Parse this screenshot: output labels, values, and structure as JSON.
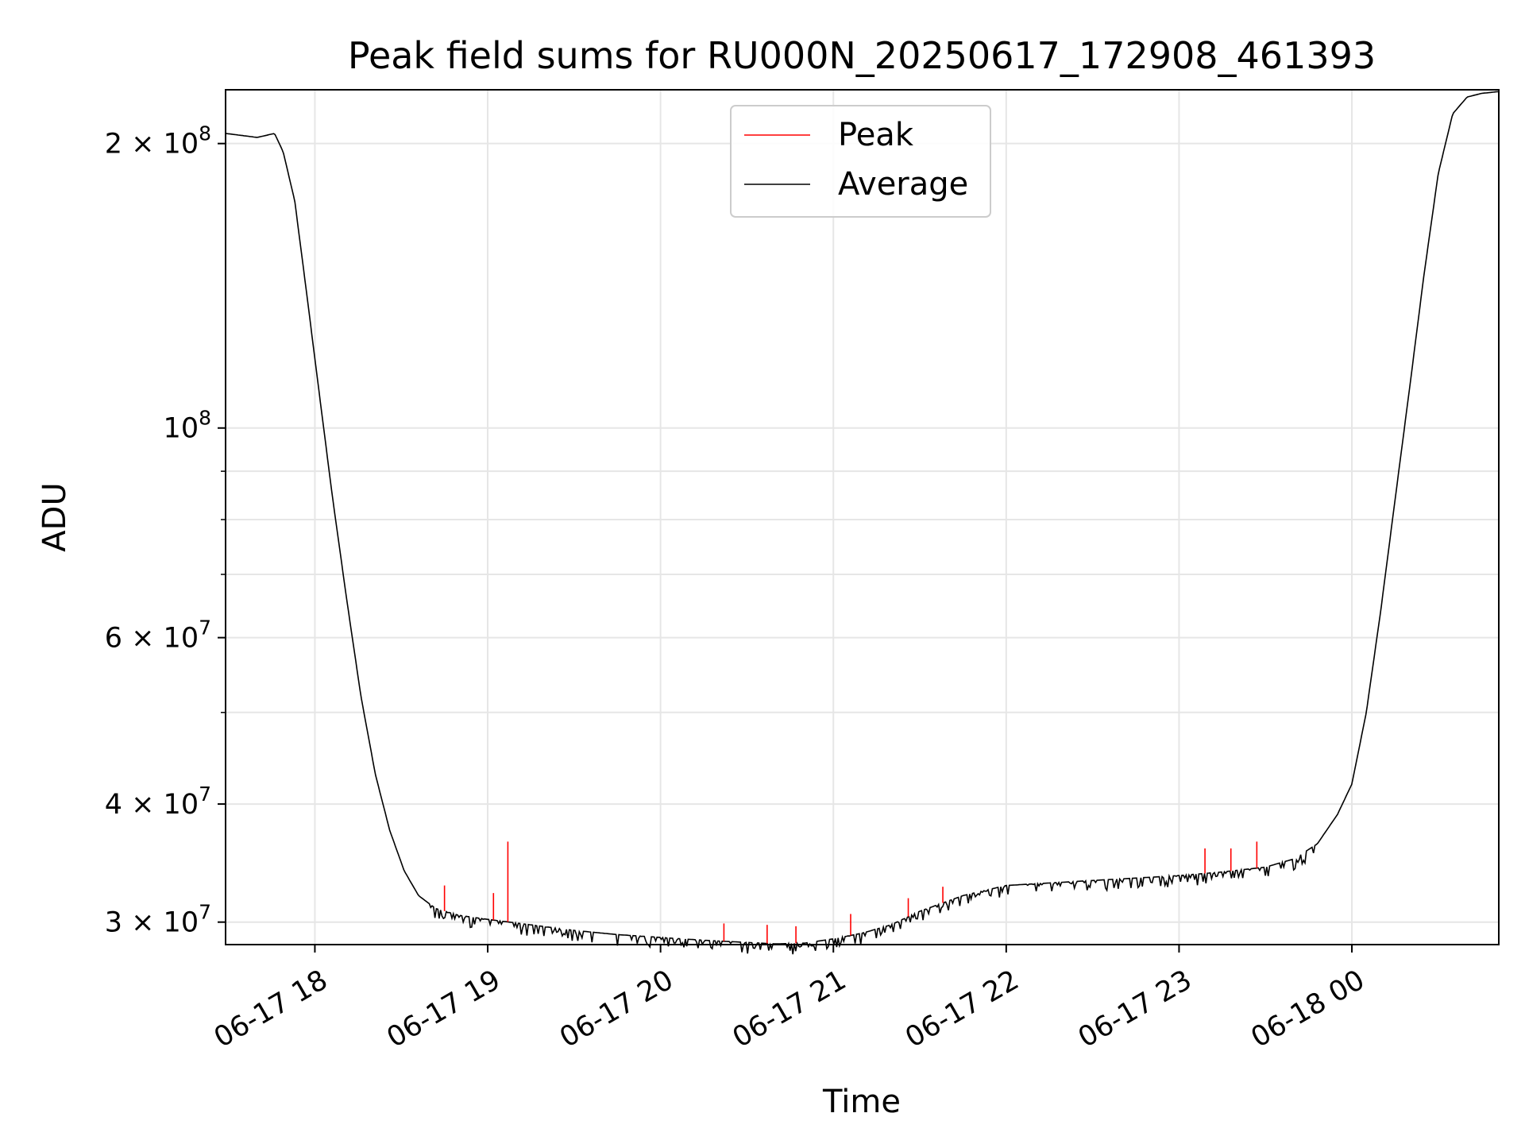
{
  "chart_data": {
    "type": "line",
    "title": "Peak field sums for RU000N_20250617_172908_461393",
    "xlabel": "Time",
    "ylabel": "ADU",
    "y_scale": "log",
    "xlim": [
      "2025-06-17 17:29",
      "2025-06-18 00:51"
    ],
    "ylim": [
      28400000,
      228000000
    ],
    "grid": true,
    "legend_position": "top-center",
    "x_ticks": [
      {
        "t": "2025-06-17 18:00",
        "label": "06-17 18"
      },
      {
        "t": "2025-06-17 19:00",
        "label": "06-17 19"
      },
      {
        "t": "2025-06-17 20:00",
        "label": "06-17 20"
      },
      {
        "t": "2025-06-17 21:00",
        "label": "06-17 21"
      },
      {
        "t": "2025-06-17 22:00",
        "label": "06-17 22"
      },
      {
        "t": "2025-06-17 23:00",
        "label": "06-17 23"
      },
      {
        "t": "2025-06-18 00:00",
        "label": "06-18 00"
      }
    ],
    "y_ticks": [
      {
        "v": 30000000,
        "mant": "3",
        "exp": "7"
      },
      {
        "v": 40000000,
        "mant": "4",
        "exp": "7"
      },
      {
        "v": 60000000,
        "mant": "6",
        "exp": "7"
      },
      {
        "v": 100000000,
        "mant": "",
        "exp": "8"
      },
      {
        "v": 200000000,
        "mant": "2",
        "exp": "8"
      }
    ],
    "y_minor_ticks": [
      50000000,
      70000000,
      80000000,
      90000000
    ],
    "series": [
      {
        "name": "Average",
        "color": "#000000",
        "x": [
          "2025-06-17 17:29",
          "2025-06-17 17:40",
          "2025-06-17 17:46",
          "2025-06-17 17:49",
          "2025-06-17 17:53",
          "2025-06-17 17:57",
          "2025-06-17 18:01",
          "2025-06-17 18:06",
          "2025-06-17 18:11",
          "2025-06-17 18:16",
          "2025-06-17 18:21",
          "2025-06-17 18:26",
          "2025-06-17 18:31",
          "2025-06-17 18:36",
          "2025-06-17 18:42",
          "2025-06-17 18:50",
          "2025-06-17 19:00",
          "2025-06-17 19:15",
          "2025-06-17 19:30",
          "2025-06-17 19:45",
          "2025-06-17 20:00",
          "2025-06-17 20:15",
          "2025-06-17 20:30",
          "2025-06-17 20:40",
          "2025-06-17 20:50",
          "2025-06-17 21:00",
          "2025-06-17 21:10",
          "2025-06-17 21:20",
          "2025-06-17 21:30",
          "2025-06-17 21:45",
          "2025-06-17 22:00",
          "2025-06-17 22:15",
          "2025-06-17 22:30",
          "2025-06-17 22:45",
          "2025-06-17 23:00",
          "2025-06-17 23:15",
          "2025-06-17 23:30",
          "2025-06-17 23:40",
          "2025-06-17 23:48",
          "2025-06-17 23:55",
          "2025-06-18 00:00",
          "2025-06-18 00:05",
          "2025-06-18 00:10",
          "2025-06-18 00:15",
          "2025-06-18 00:20",
          "2025-06-18 00:25",
          "2025-06-18 00:30",
          "2025-06-18 00:35",
          "2025-06-18 00:40",
          "2025-06-18 00:45",
          "2025-06-18 00:51"
        ],
        "values": [
          205000000,
          203000000,
          205000000,
          196000000,
          174000000,
          140000000,
          112000000,
          85000000,
          66000000,
          52000000,
          43000000,
          37500000,
          34000000,
          32000000,
          31000000,
          30500000,
          30200000,
          29800000,
          29400000,
          29100000,
          28900000,
          28700000,
          28550000,
          28450000,
          28500000,
          28800000,
          29200000,
          29800000,
          30800000,
          32000000,
          32800000,
          33000000,
          33200000,
          33400000,
          33600000,
          33900000,
          34300000,
          35000000,
          36300000,
          39000000,
          42000000,
          50000000,
          64000000,
          84000000,
          110000000,
          145000000,
          186000000,
          215000000,
          224000000,
          226000000,
          227000000
        ]
      },
      {
        "name": "Peak",
        "color": "#ff0000",
        "x": [
          "2025-06-17 18:45",
          "2025-06-17 19:02",
          "2025-06-17 19:07",
          "2025-06-17 20:22",
          "2025-06-17 20:37",
          "2025-06-17 20:47",
          "2025-06-17 21:06",
          "2025-06-17 21:26",
          "2025-06-17 21:38",
          "2025-06-17 23:09",
          "2025-06-17 23:18",
          "2025-06-17 23:27"
        ],
        "values": [
          32800000,
          32200000,
          36500000,
          29900000,
          29800000,
          29700000,
          30600000,
          31800000,
          32700000,
          35900000,
          35900000,
          36500000
        ]
      }
    ]
  }
}
